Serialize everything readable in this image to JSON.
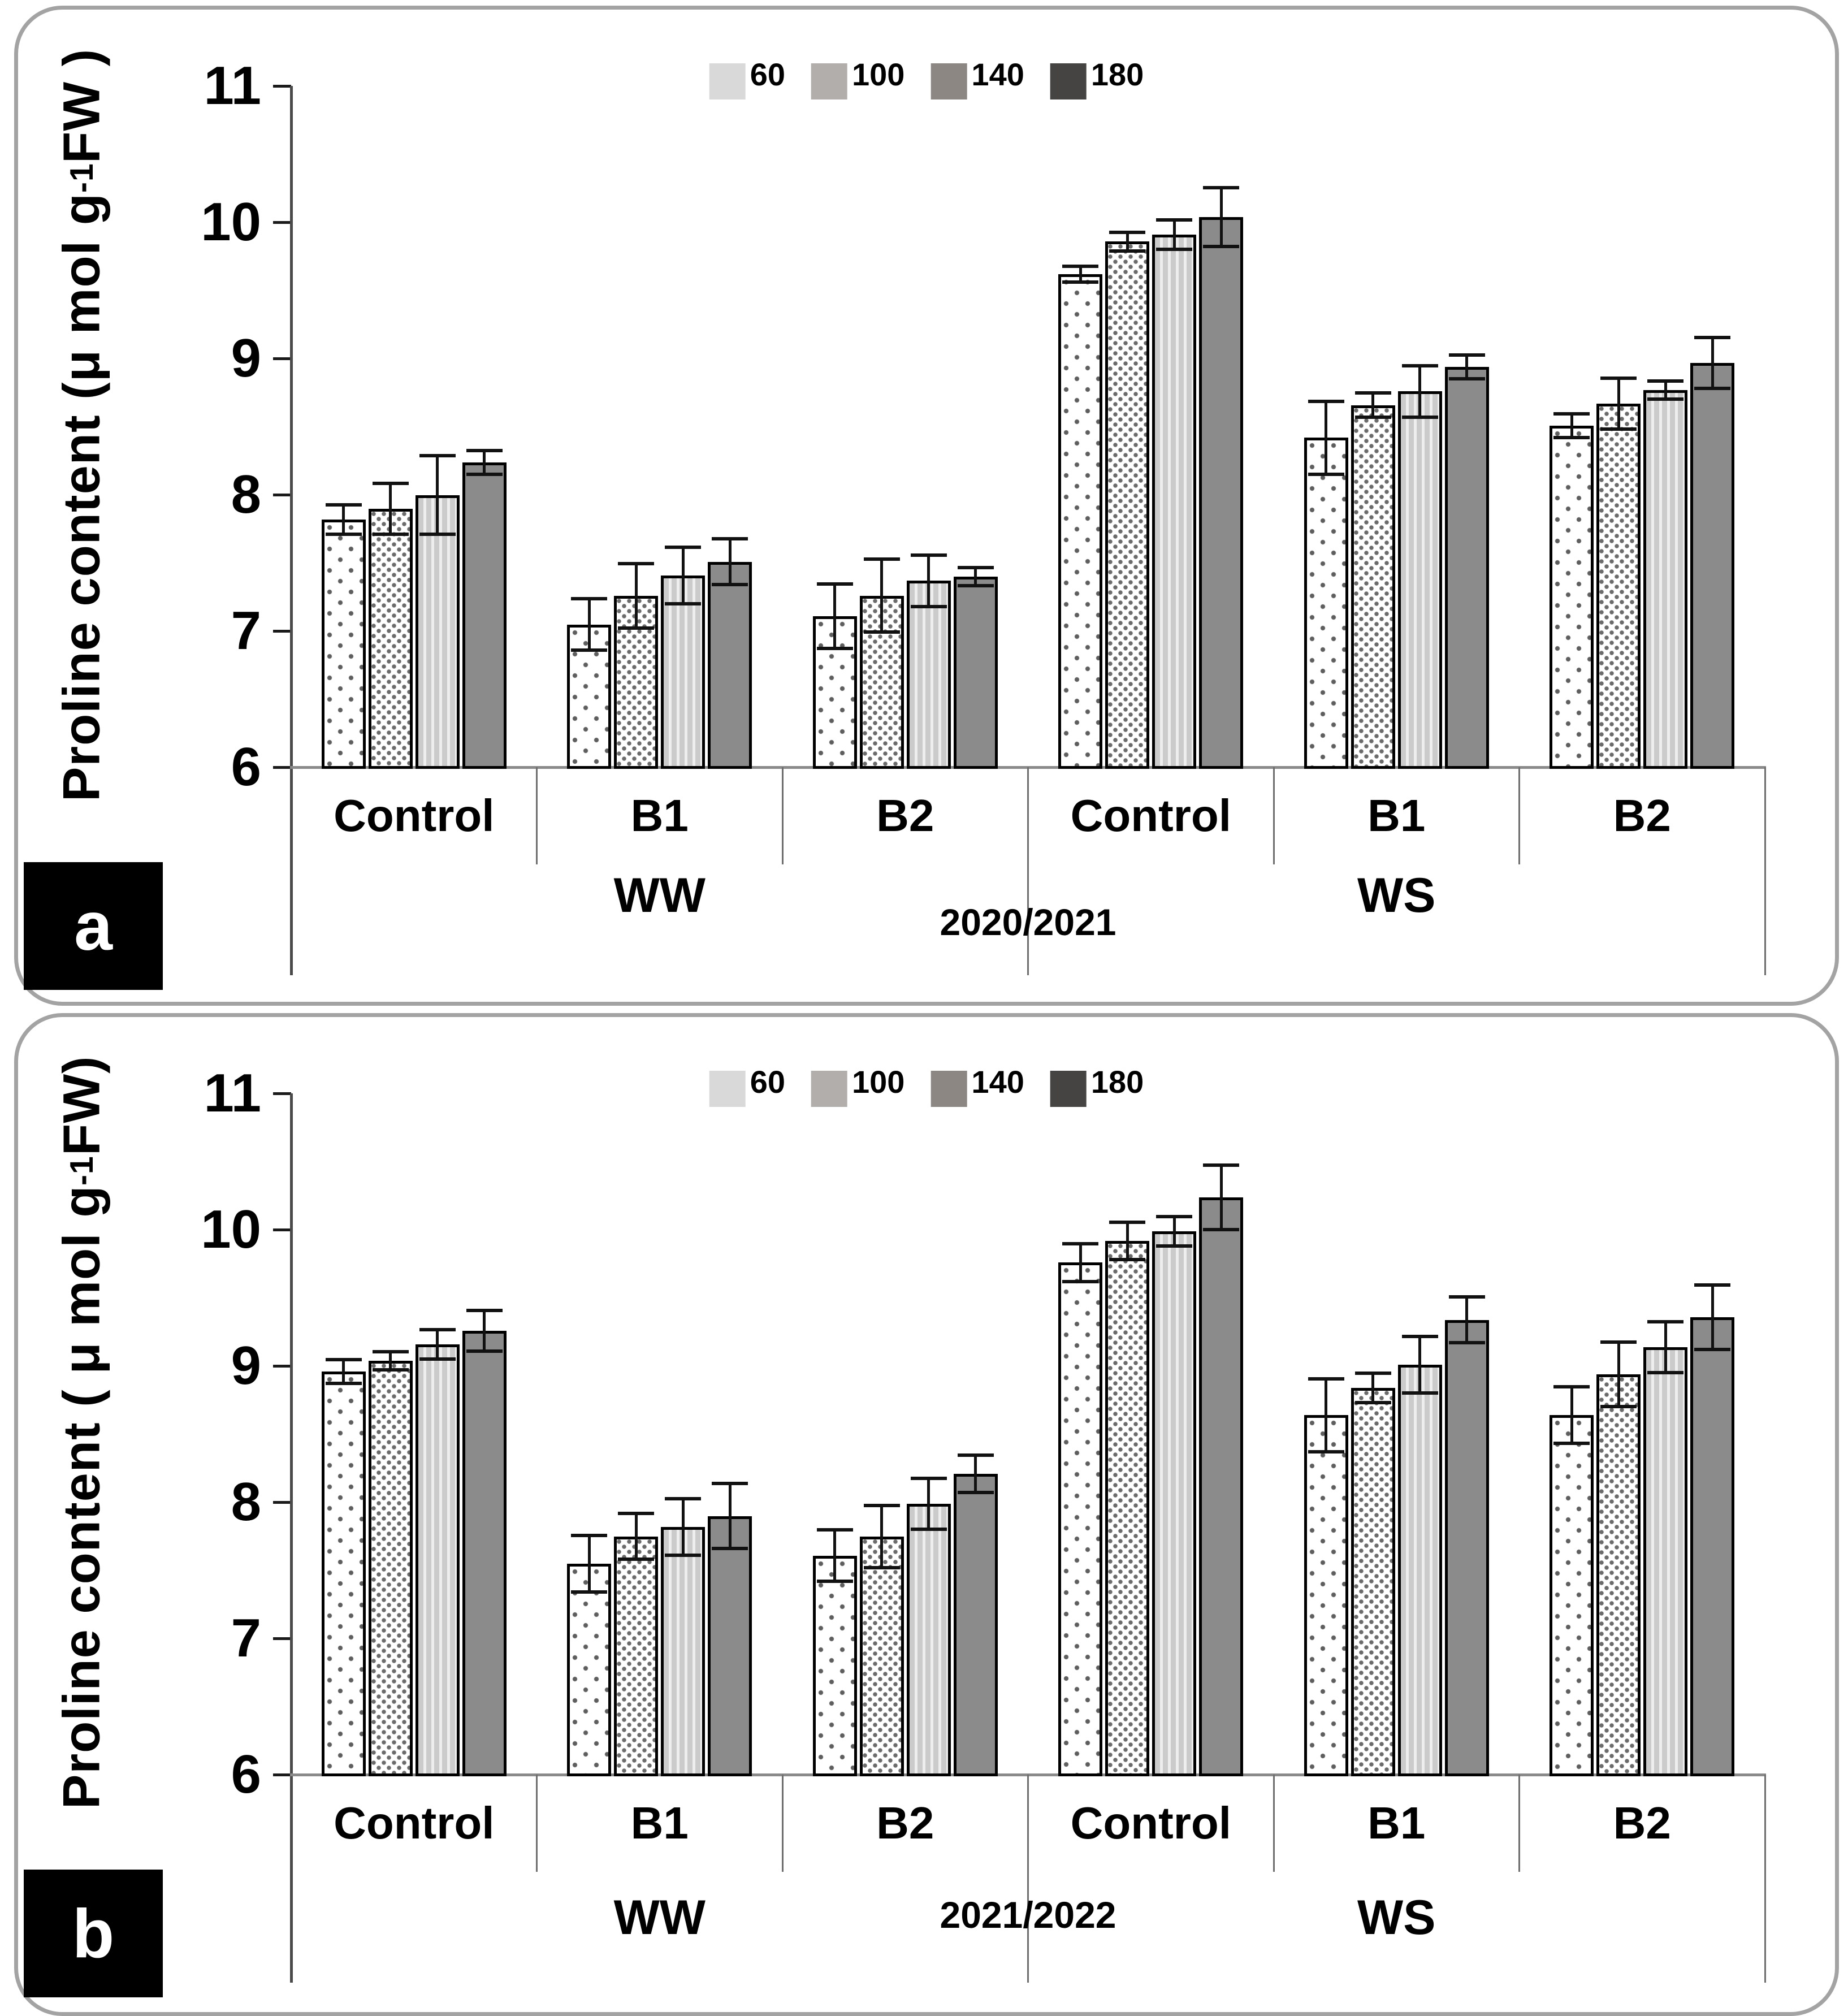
{
  "chart_data": [
    {
      "id": "a",
      "type": "bar",
      "badge": "a",
      "year": "2020/2021",
      "ylabel_prefix": "Proline content  (μ mol g",
      "ylabel_sup": "-1",
      "ylabel_suffix": " FW )",
      "ylim": [
        6,
        11
      ],
      "yticks": [
        11,
        10,
        9,
        8,
        7,
        6
      ],
      "grid": false,
      "legend_position": "top-center",
      "series_labels": [
        "60",
        "100",
        "140",
        "180"
      ],
      "legend_colors": [
        "#d9d9d9",
        "#b2aeab",
        "#8c8782",
        "#454443"
      ],
      "conditions": [
        {
          "label": "WW",
          "groups": [
            {
              "label": "Control",
              "values": [
                7.83,
                7.91,
                8.01,
                8.25
              ],
              "errors": [
                0.12,
                0.2,
                0.3,
                0.1
              ]
            },
            {
              "label": "B1",
              "values": [
                7.06,
                7.27,
                7.42,
                7.52
              ],
              "errors": [
                0.2,
                0.25,
                0.22,
                0.18
              ]
            },
            {
              "label": "B2",
              "values": [
                7.12,
                7.27,
                7.38,
                7.41
              ],
              "errors": [
                0.25,
                0.28,
                0.2,
                0.08
              ]
            }
          ]
        },
        {
          "label": "WS",
          "groups": [
            {
              "label": "Control",
              "values": [
                9.63,
                9.87,
                9.92,
                10.05
              ],
              "errors": [
                0.07,
                0.08,
                0.12,
                0.23
              ]
            },
            {
              "label": "B1",
              "values": [
                8.43,
                8.67,
                8.77,
                8.95
              ],
              "errors": [
                0.28,
                0.1,
                0.2,
                0.1
              ]
            },
            {
              "label": "B2",
              "values": [
                8.52,
                8.68,
                8.78,
                8.98
              ],
              "errors": [
                0.1,
                0.2,
                0.08,
                0.2
              ]
            }
          ]
        }
      ]
    },
    {
      "id": "b",
      "type": "bar",
      "badge": "b",
      "year": "2021/2022",
      "ylabel_prefix": "Proline content  ( μ mol g",
      "ylabel_sup": "-1",
      "ylabel_suffix": " FW)",
      "ylim": [
        6,
        11
      ],
      "yticks": [
        11,
        10,
        9,
        8,
        7,
        6
      ],
      "grid": false,
      "legend_position": "top-center",
      "series_labels": [
        "60",
        "100",
        "140",
        "180"
      ],
      "legend_colors": [
        "#d9d9d9",
        "#b2aeab",
        "#8c8782",
        "#454443"
      ],
      "conditions": [
        {
          "label": "WW",
          "groups": [
            {
              "label": "Control",
              "values": [
                8.97,
                9.05,
                9.17,
                9.27
              ],
              "errors": [
                0.1,
                0.08,
                0.12,
                0.16
              ]
            },
            {
              "label": "B1",
              "values": [
                7.56,
                7.76,
                7.83,
                7.91
              ],
              "errors": [
                0.22,
                0.18,
                0.22,
                0.25
              ]
            },
            {
              "label": "B2",
              "values": [
                7.62,
                7.76,
                8.0,
                8.22
              ],
              "errors": [
                0.2,
                0.24,
                0.2,
                0.15
              ]
            }
          ]
        },
        {
          "label": "WS",
          "groups": [
            {
              "label": "Control",
              "values": [
                9.77,
                9.93,
                10.0,
                10.25
              ],
              "errors": [
                0.15,
                0.15,
                0.12,
                0.25
              ]
            },
            {
              "label": "B1",
              "values": [
                8.65,
                8.85,
                9.02,
                9.35
              ],
              "errors": [
                0.28,
                0.12,
                0.22,
                0.18
              ]
            },
            {
              "label": "B2",
              "values": [
                8.65,
                8.95,
                9.15,
                9.37
              ],
              "errors": [
                0.22,
                0.25,
                0.2,
                0.25
              ]
            }
          ]
        }
      ]
    }
  ]
}
